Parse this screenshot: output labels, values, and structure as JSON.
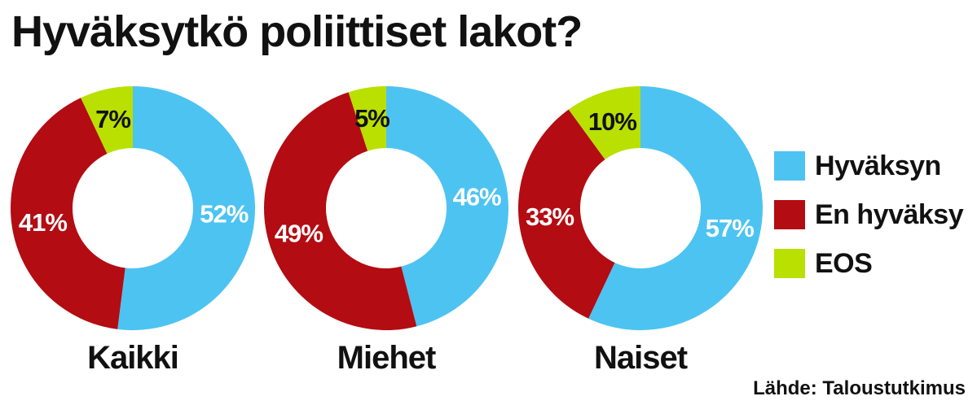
{
  "title": "Hyväksytkö poliittiset lakot?",
  "source": "Lähde: Taloustutkimus",
  "colors": {
    "Hyväksyn": "#4dc3f2",
    "En hyväksy": "#b30c12",
    "EOS": "#b9e000"
  },
  "chart_data": {
    "type": "pie",
    "title": "Hyväksytkö poliittiset lakot?",
    "legend": "right",
    "series_names": [
      "Hyväksyn",
      "En hyväksy",
      "EOS"
    ],
    "charts": [
      {
        "name": "Kaikki",
        "slices": [
          {
            "label": "Hyväksyn",
            "value": 52,
            "text": "52%"
          },
          {
            "label": "En hyväksy",
            "value": 41,
            "text": "41%"
          },
          {
            "label": "EOS",
            "value": 7,
            "text": "7%"
          }
        ]
      },
      {
        "name": "Miehet",
        "slices": [
          {
            "label": "Hyväksyn",
            "value": 46,
            "text": "46%"
          },
          {
            "label": "En hyväksy",
            "value": 49,
            "text": "49%"
          },
          {
            "label": "EOS",
            "value": 5,
            "text": "5%"
          }
        ]
      },
      {
        "name": "Naiset",
        "slices": [
          {
            "label": "Hyväksyn",
            "value": 57,
            "text": "57%"
          },
          {
            "label": "En hyväksy",
            "value": 33,
            "text": "33%"
          },
          {
            "label": "EOS",
            "value": 10,
            "text": "10%"
          }
        ]
      }
    ]
  },
  "legend": [
    {
      "label": "Hyväksyn"
    },
    {
      "label": "En hyväksy"
    },
    {
      "label": "EOS"
    }
  ]
}
